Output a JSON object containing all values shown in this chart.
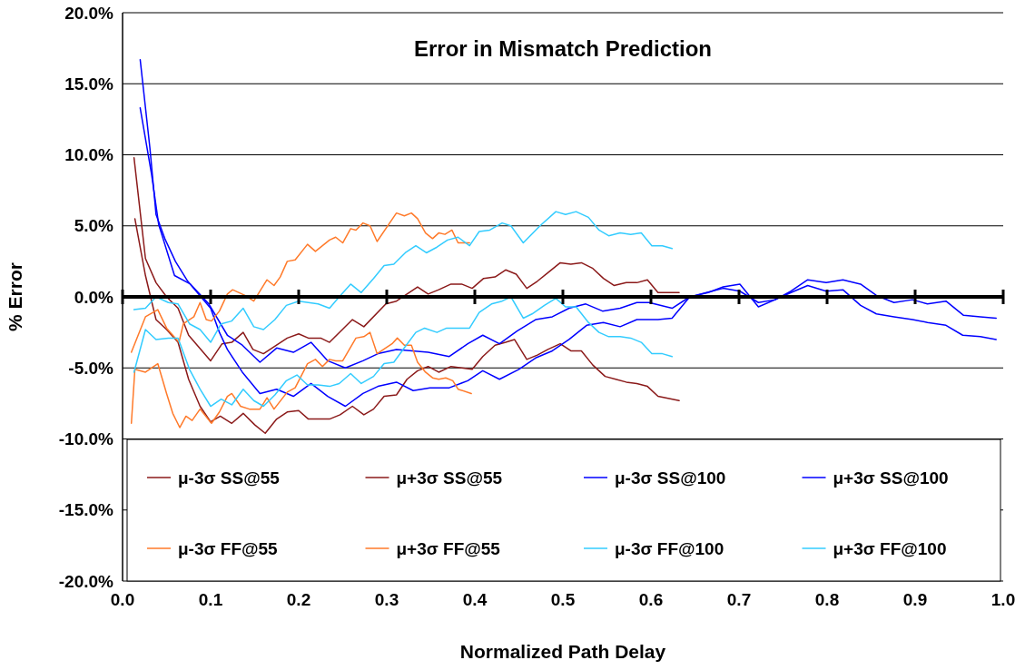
{
  "chart_data": {
    "type": "line",
    "title": "Error in Mismatch Prediction",
    "xlabel": "Normalized Path Delay",
    "ylabel": "% Error",
    "xlim": [
      0,
      1
    ],
    "xticks": [
      {
        "value": 0,
        "label": "0.0"
      },
      {
        "value": 0.1,
        "label": "0.1"
      },
      {
        "value": 0.2,
        "label": "0.2"
      },
      {
        "value": 0.3,
        "label": "0.3"
      },
      {
        "value": 0.4,
        "label": "0.4"
      },
      {
        "value": 0.5,
        "label": "0.5"
      },
      {
        "value": 0.6,
        "label": "0.6"
      },
      {
        "value": 0.7,
        "label": "0.7"
      },
      {
        "value": 0.8,
        "label": "0.8"
      },
      {
        "value": 0.9,
        "label": "0.9"
      },
      {
        "value": 1,
        "label": "1.0"
      }
    ],
    "ylim": [
      -20,
      20
    ],
    "yticks": [
      {
        "value": -20,
        "label": "-20.0%"
      },
      {
        "value": -15,
        "label": "-15.0%"
      },
      {
        "value": -10,
        "label": "-10.0%"
      },
      {
        "value": -5,
        "label": "-5.0%"
      },
      {
        "value": 0,
        "label": "0.0%"
      },
      {
        "value": 5,
        "label": "5.0%"
      },
      {
        "value": 10,
        "label": "10.0%"
      },
      {
        "value": 15,
        "label": "15.0%"
      },
      {
        "value": 20,
        "label": "20.0%"
      }
    ],
    "grid": "y",
    "legend": "bottom",
    "marker": "none",
    "line_style": "solid",
    "series": [
      {
        "name": "μ-3σ SS@55",
        "color": "#8b1a1a",
        "x": [
          0.014,
          0.026,
          0.038,
          0.05,
          0.063,
          0.075,
          0.088,
          0.1,
          0.111,
          0.124,
          0.137,
          0.15,
          0.162,
          0.175,
          0.187,
          0.2,
          0.211,
          0.225,
          0.235,
          0.247,
          0.261,
          0.274,
          0.285,
          0.297,
          0.311,
          0.323,
          0.335,
          0.347,
          0.359,
          0.373,
          0.385,
          0.397,
          0.409,
          0.423,
          0.435,
          0.445,
          0.459,
          0.471,
          0.483,
          0.497,
          0.509,
          0.521,
          0.534,
          0.548,
          0.56,
          0.572,
          0.584,
          0.596,
          0.608,
          0.632
        ],
        "values": [
          5.5,
          1.5,
          -1.6,
          -2.3,
          -3.2,
          -5.8,
          -7.7,
          -8.8,
          -8.4,
          -8.9,
          -8.2,
          -9.0,
          -9.6,
          -8.6,
          -8.1,
          -8.0,
          -8.6,
          -8.6,
          -8.6,
          -8.3,
          -7.7,
          -8.3,
          -7.9,
          -7.0,
          -6.9,
          -5.8,
          -5.2,
          -4.9,
          -5.3,
          -4.9,
          -5.0,
          -5.1,
          -4.2,
          -3.4,
          -3.2,
          -3.0,
          -4.4,
          -4.1,
          -3.7,
          -3.3,
          -3.8,
          -3.8,
          -4.8,
          -5.6,
          -5.8,
          -6.0,
          -6.1,
          -6.3,
          -7.0,
          -7.3
        ]
      },
      {
        "name": "μ+3σ SS@55",
        "color": "#8b1a1a",
        "x": [
          0.013,
          0.026,
          0.038,
          0.05,
          0.063,
          0.075,
          0.1,
          0.113,
          0.124,
          0.137,
          0.148,
          0.16,
          0.187,
          0.2,
          0.211,
          0.225,
          0.235,
          0.261,
          0.274,
          0.299,
          0.311,
          0.335,
          0.347,
          0.359,
          0.373,
          0.385,
          0.397,
          0.41,
          0.423,
          0.435,
          0.447,
          0.459,
          0.471,
          0.483,
          0.497,
          0.509,
          0.521,
          0.534,
          0.546,
          0.558,
          0.572,
          0.584,
          0.596,
          0.608,
          0.632
        ],
        "values": [
          9.8,
          2.7,
          1.0,
          0.0,
          -0.8,
          -2.7,
          -4.5,
          -3.3,
          -3.2,
          -2.5,
          -3.7,
          -4.0,
          -2.9,
          -2.6,
          -2.9,
          -2.9,
          -3.2,
          -1.6,
          -2.1,
          -0.5,
          -0.3,
          0.7,
          0.2,
          0.5,
          0.9,
          0.9,
          0.6,
          1.3,
          1.4,
          1.9,
          1.6,
          0.6,
          1.1,
          1.7,
          2.4,
          2.3,
          2.4,
          2.0,
          1.3,
          0.8,
          1.0,
          1.0,
          1.2,
          0.3,
          0.3
        ]
      },
      {
        "name": "μ-3σ SS@100",
        "color": "#0000ff",
        "x": [
          0.02,
          0.031,
          0.038,
          0.048,
          0.06,
          0.074,
          0.089,
          0.1,
          0.11,
          0.119,
          0.136,
          0.156,
          0.175,
          0.194,
          0.214,
          0.233,
          0.253,
          0.273,
          0.29,
          0.311,
          0.33,
          0.349,
          0.371,
          0.392,
          0.409,
          0.428,
          0.45,
          0.469,
          0.488,
          0.507,
          0.527,
          0.546,
          0.565,
          0.584,
          0.608,
          0.624,
          0.644,
          0.663,
          0.682,
          0.701,
          0.722,
          0.741,
          0.759,
          0.778,
          0.799,
          0.818,
          0.838,
          0.856,
          0.876,
          0.897,
          0.914,
          0.935,
          0.955,
          0.974,
          0.992
        ],
        "values": [
          16.7,
          10.5,
          5.8,
          4.1,
          2.5,
          1.1,
          0.0,
          -0.8,
          -2.5,
          -3.7,
          -5.3,
          -6.8,
          -6.5,
          -7.0,
          -6.1,
          -7.0,
          -7.7,
          -6.8,
          -6.3,
          -6.0,
          -6.6,
          -6.4,
          -6.4,
          -5.9,
          -5.2,
          -5.8,
          -5.1,
          -4.3,
          -3.8,
          -3.0,
          -2.0,
          -1.8,
          -2.1,
          -1.6,
          -1.6,
          -1.5,
          0.0,
          0.3,
          0.6,
          0.4,
          -0.4,
          -0.2,
          0.4,
          1.2,
          1.0,
          1.2,
          0.9,
          0.1,
          -0.4,
          -0.2,
          -0.5,
          -0.3,
          -1.3,
          -1.4,
          -1.5
        ]
      },
      {
        "name": "μ+3σ SS@100",
        "color": "#0000ff",
        "x": [
          0.02,
          0.033,
          0.041,
          0.059,
          0.077,
          0.098,
          0.119,
          0.136,
          0.156,
          0.175,
          0.194,
          0.214,
          0.233,
          0.253,
          0.273,
          0.29,
          0.311,
          0.347,
          0.371,
          0.392,
          0.409,
          0.428,
          0.448,
          0.469,
          0.488,
          0.507,
          0.526,
          0.545,
          0.565,
          0.584,
          0.598,
          0.624,
          0.644,
          0.665,
          0.682,
          0.701,
          0.722,
          0.741,
          0.759,
          0.778,
          0.799,
          0.818,
          0.838,
          0.856,
          0.876,
          0.897,
          0.914,
          0.935,
          0.954,
          0.974,
          0.992
        ],
        "values": [
          13.3,
          8.6,
          5.1,
          1.5,
          0.9,
          -0.5,
          -2.7,
          -3.4,
          -4.6,
          -3.6,
          -3.9,
          -3.2,
          -4.5,
          -5.0,
          -4.5,
          -4.0,
          -3.7,
          -3.9,
          -4.2,
          -3.3,
          -2.7,
          -3.3,
          -2.4,
          -1.6,
          -1.4,
          -0.8,
          -0.5,
          -1.0,
          -0.8,
          -0.4,
          -0.4,
          -0.8,
          0.0,
          0.3,
          0.7,
          0.9,
          -0.7,
          -0.2,
          0.3,
          0.8,
          0.4,
          0.5,
          -0.6,
          -1.2,
          -1.4,
          -1.6,
          -1.8,
          -2.0,
          -2.7,
          -2.8,
          -3.0
        ]
      },
      {
        "name": "μ-3σ FF@55",
        "color": "#ff7a2a",
        "x": [
          0.01,
          0.014,
          0.026,
          0.04,
          0.05,
          0.057,
          0.065,
          0.072,
          0.079,
          0.088,
          0.101,
          0.11,
          0.119,
          0.124,
          0.134,
          0.144,
          0.156,
          0.164,
          0.172,
          0.187,
          0.196,
          0.21,
          0.219,
          0.227,
          0.235,
          0.242,
          0.25,
          0.265,
          0.274,
          0.281,
          0.289,
          0.306,
          0.312,
          0.32,
          0.328,
          0.335,
          0.344,
          0.352,
          0.359,
          0.367,
          0.375,
          0.381,
          0.396
        ],
        "values": [
          -8.9,
          -5.1,
          -5.3,
          -4.7,
          -6.8,
          -8.2,
          -9.2,
          -8.4,
          -8.7,
          -7.9,
          -8.9,
          -8.1,
          -7.0,
          -6.8,
          -7.7,
          -7.9,
          -7.9,
          -7.1,
          -7.9,
          -6.7,
          -6.4,
          -4.7,
          -4.4,
          -4.9,
          -4.4,
          -4.5,
          -4.5,
          -2.9,
          -2.8,
          -2.5,
          -4.0,
          -3.3,
          -2.9,
          -3.4,
          -3.4,
          -4.6,
          -5.3,
          -5.7,
          -5.8,
          -5.7,
          -5.9,
          -6.5,
          -6.8
        ]
      },
      {
        "name": "μ+3σ FF@55",
        "color": "#ff7a2a",
        "x": [
          0.01,
          0.026,
          0.04,
          0.05,
          0.064,
          0.069,
          0.081,
          0.088,
          0.095,
          0.101,
          0.11,
          0.119,
          0.125,
          0.139,
          0.149,
          0.164,
          0.172,
          0.179,
          0.187,
          0.196,
          0.21,
          0.219,
          0.235,
          0.242,
          0.25,
          0.259,
          0.265,
          0.273,
          0.281,
          0.289,
          0.311,
          0.32,
          0.328,
          0.335,
          0.344,
          0.352,
          0.359,
          0.366,
          0.374,
          0.381,
          0.394
        ],
        "values": [
          -3.9,
          -1.4,
          -0.9,
          -2.2,
          -3.2,
          -1.9,
          -1.4,
          -0.4,
          -1.6,
          -1.7,
          -1.0,
          0.2,
          0.5,
          0.1,
          -0.3,
          1.2,
          0.8,
          1.4,
          2.5,
          2.6,
          3.7,
          3.2,
          4.0,
          4.2,
          3.8,
          4.8,
          4.7,
          5.2,
          5.0,
          3.9,
          5.9,
          5.7,
          5.9,
          5.5,
          4.5,
          4.1,
          4.5,
          4.4,
          4.7,
          3.8,
          3.8
        ]
      },
      {
        "name": "μ-3σ FF@100",
        "color": "#33ccff",
        "x": [
          0.013,
          0.026,
          0.038,
          0.052,
          0.063,
          0.076,
          0.088,
          0.1,
          0.112,
          0.124,
          0.137,
          0.149,
          0.16,
          0.173,
          0.186,
          0.198,
          0.21,
          0.222,
          0.235,
          0.246,
          0.259,
          0.271,
          0.285,
          0.297,
          0.308,
          0.321,
          0.333,
          0.343,
          0.357,
          0.368,
          0.394,
          0.405,
          0.419,
          0.431,
          0.441,
          0.455,
          0.465,
          0.479,
          0.492,
          0.503,
          0.515,
          0.529,
          0.541,
          0.552,
          0.565,
          0.577,
          0.589,
          0.601,
          0.613,
          0.624
        ],
        "values": [
          -5.3,
          -2.3,
          -3.0,
          -2.9,
          -2.9,
          -5.1,
          -6.5,
          -7.7,
          -7.2,
          -7.6,
          -6.5,
          -7.3,
          -7.7,
          -6.9,
          -5.9,
          -5.5,
          -6.2,
          -6.2,
          -6.3,
          -6.1,
          -5.4,
          -6.1,
          -5.6,
          -4.7,
          -4.6,
          -3.5,
          -2.5,
          -2.2,
          -2.5,
          -2.2,
          -2.2,
          -1.1,
          -0.5,
          -0.3,
          0.0,
          -1.5,
          -1.2,
          -0.6,
          -0.1,
          -0.7,
          -0.7,
          -1.8,
          -2.5,
          -2.8,
          -2.8,
          -2.9,
          -3.2,
          -4.0,
          -4.0,
          -4.2
        ]
      },
      {
        "name": "μ+3σ FF@100",
        "color": "#33ccff",
        "x": [
          0.013,
          0.026,
          0.038,
          0.052,
          0.063,
          0.076,
          0.088,
          0.1,
          0.112,
          0.124,
          0.137,
          0.149,
          0.16,
          0.173,
          0.186,
          0.2,
          0.222,
          0.235,
          0.246,
          0.259,
          0.271,
          0.285,
          0.297,
          0.308,
          0.321,
          0.333,
          0.345,
          0.357,
          0.369,
          0.381,
          0.394,
          0.405,
          0.417,
          0.431,
          0.441,
          0.455,
          0.474,
          0.492,
          0.503,
          0.515,
          0.529,
          0.541,
          0.552,
          0.565,
          0.577,
          0.589,
          0.601,
          0.613,
          0.624
        ],
        "values": [
          -0.9,
          -0.8,
          0.0,
          -0.4,
          -0.5,
          -1.9,
          -2.3,
          -3.2,
          -1.9,
          -1.7,
          -0.8,
          -2.1,
          -2.3,
          -1.6,
          -0.6,
          -0.3,
          -0.5,
          -0.8,
          0.0,
          0.9,
          0.3,
          1.3,
          2.2,
          2.3,
          3.1,
          3.6,
          3.1,
          3.5,
          4.0,
          4.2,
          3.6,
          4.6,
          4.7,
          5.2,
          5.0,
          3.8,
          5.0,
          6.0,
          5.8,
          6.0,
          5.6,
          4.7,
          4.3,
          4.5,
          4.4,
          4.5,
          3.6,
          3.6,
          3.4
        ]
      }
    ]
  }
}
